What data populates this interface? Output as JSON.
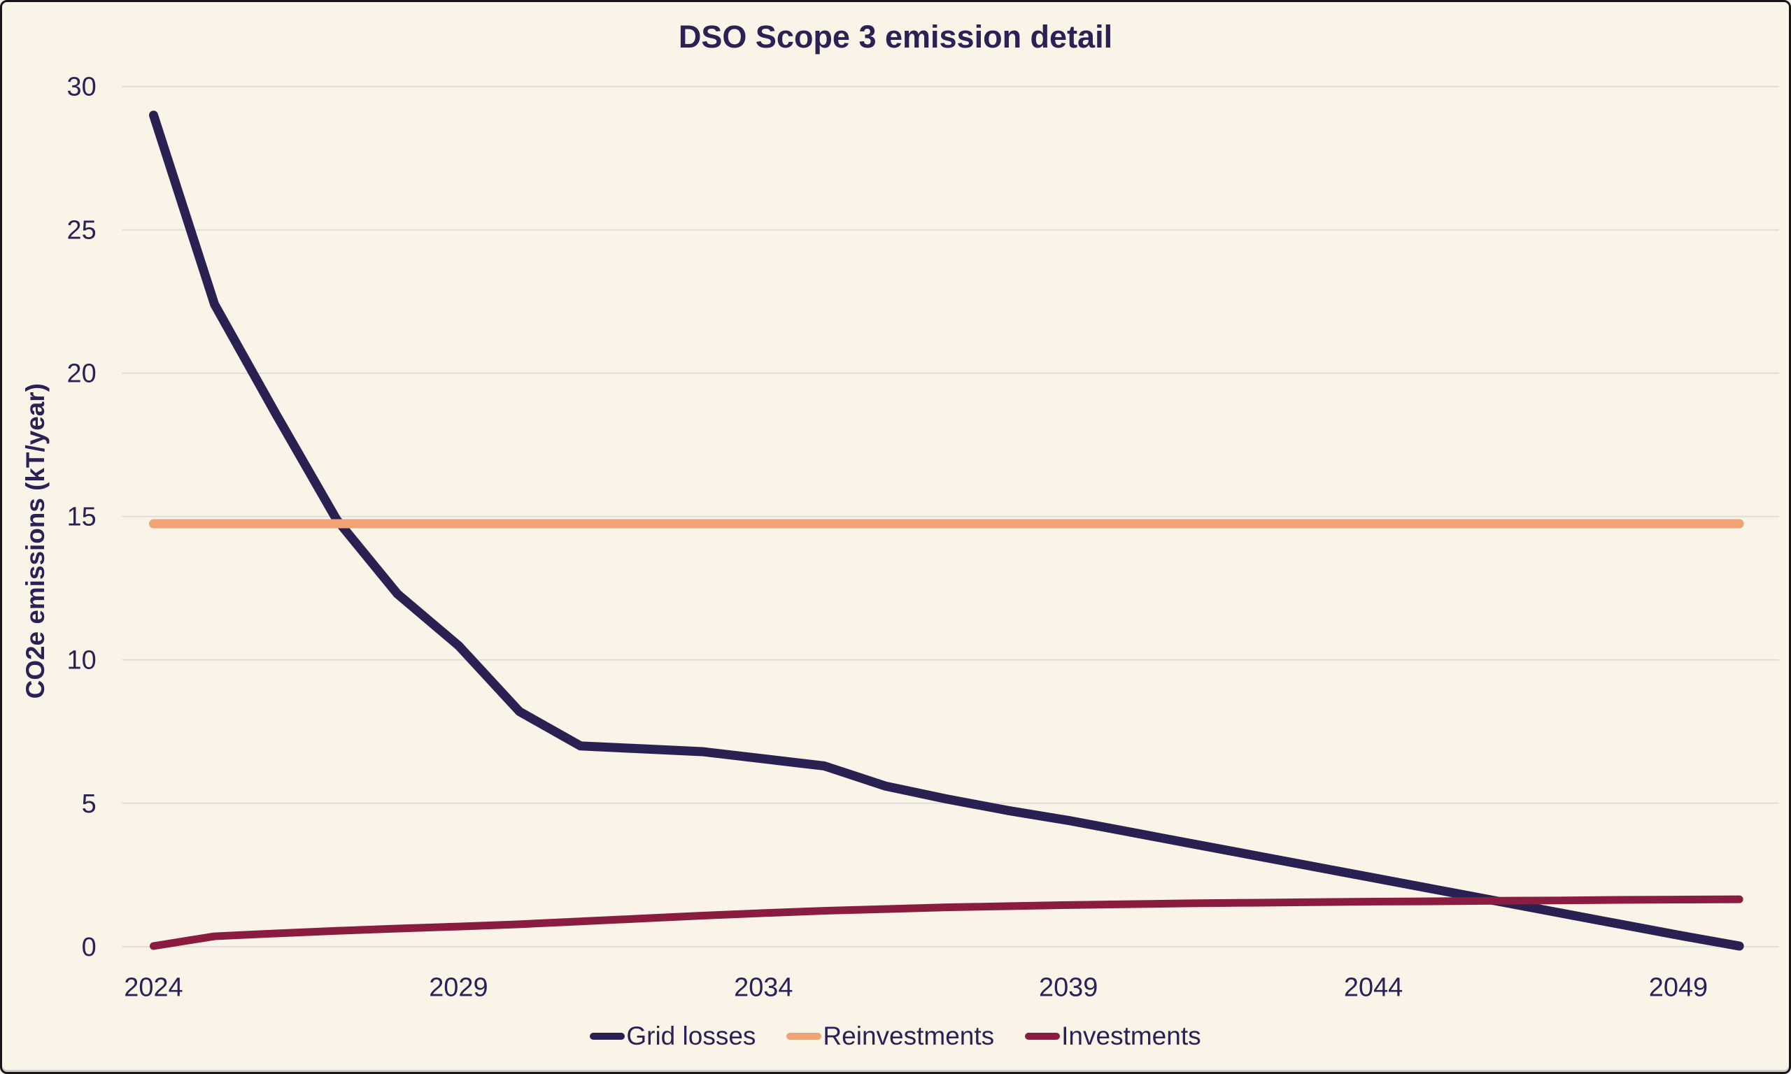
{
  "window": {
    "background": "#FAF3E7",
    "border_color": "#17141C"
  },
  "colors": {
    "text_navy": "#2B2154",
    "gridline": "#DFDDD9"
  },
  "chart_data": {
    "type": "line",
    "title": "DSO Scope 3 emission detail",
    "xlabel": "",
    "ylabel": "CO2e emissions (kT/year)",
    "xlim": [
      2024,
      2050
    ],
    "ylim": [
      0,
      30
    ],
    "grid": "horizontal",
    "legend_position": "bottom",
    "x": [
      2024,
      2025,
      2026,
      2027,
      2028,
      2029,
      2030,
      2031,
      2032,
      2033,
      2034,
      2035,
      2036,
      2037,
      2038,
      2039,
      2040,
      2041,
      2042,
      2043,
      2044,
      2045,
      2046,
      2047,
      2048,
      2049,
      2050
    ],
    "x_tick_labels": [
      "2024",
      "2029",
      "2034",
      "2039",
      "2044",
      "2049"
    ],
    "y_ticks": [
      0,
      5,
      10,
      15,
      20,
      25,
      30
    ],
    "y_tick_labels": [
      "0",
      "5",
      "10",
      "15",
      "20",
      "25",
      "30"
    ],
    "series": [
      {
        "name": "Grid losses",
        "color": "#2A2051",
        "stroke_width": 13,
        "values": [
          29.0,
          22.4,
          18.6,
          14.9,
          12.3,
          10.5,
          8.2,
          7.0,
          6.9,
          6.8,
          6.55,
          6.3,
          5.6,
          5.15,
          4.75,
          4.4,
          4.0,
          3.6,
          3.2,
          2.8,
          2.4,
          2.0,
          1.6,
          1.2,
          0.8,
          0.4,
          0.02
        ]
      },
      {
        "name": "Reinvestments",
        "color": "#F0A375",
        "stroke_width": 13,
        "values": [
          14.75,
          14.75,
          14.75,
          14.75,
          14.75,
          14.75,
          14.75,
          14.75,
          14.75,
          14.75,
          14.75,
          14.75,
          14.75,
          14.75,
          14.75,
          14.75,
          14.75,
          14.75,
          14.75,
          14.75,
          14.75,
          14.75,
          14.75,
          14.75,
          14.75,
          14.75,
          14.75
        ]
      },
      {
        "name": "Investments",
        "color": "#8A1C40",
        "stroke_width": 11,
        "values": [
          0.02,
          0.36,
          0.46,
          0.55,
          0.63,
          0.7,
          0.78,
          0.88,
          0.98,
          1.08,
          1.17,
          1.25,
          1.31,
          1.37,
          1.41,
          1.45,
          1.48,
          1.51,
          1.53,
          1.55,
          1.57,
          1.58,
          1.6,
          1.61,
          1.63,
          1.64,
          1.65
        ]
      }
    ]
  }
}
